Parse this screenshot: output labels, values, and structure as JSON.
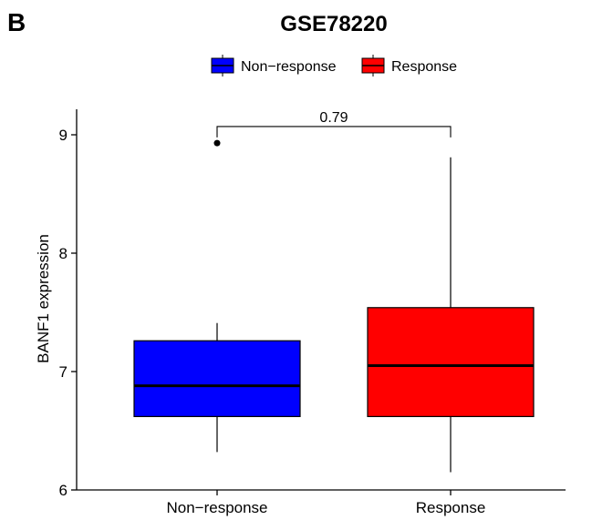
{
  "panel_label": "B",
  "chart_data": {
    "type": "boxplot",
    "title": "GSE78220",
    "xlabel": "",
    "ylabel": "BANF1 expression",
    "ylim": [
      6,
      9.25
    ],
    "yticks": [
      6,
      7,
      8,
      9
    ],
    "categories": [
      "Non−response",
      "Response"
    ],
    "legend": {
      "position": "top",
      "entries": [
        {
          "label": "Non−response",
          "color": "#0000FF"
        },
        {
          "label": "Response",
          "color": "#FF0000"
        }
      ]
    },
    "series": [
      {
        "name": "Non−response",
        "color": "#0000FF",
        "min": 6.32,
        "q1": 6.62,
        "median": 6.88,
        "q3": 7.26,
        "max": 7.41,
        "outliers": [
          8.93
        ]
      },
      {
        "name": "Response",
        "color": "#FF0000",
        "min": 6.15,
        "q1": 6.62,
        "median": 7.05,
        "q3": 7.54,
        "max": 8.81,
        "outliers": []
      }
    ],
    "annotation": {
      "text": "0.79",
      "between": [
        0,
        1
      ],
      "y": 9.07
    },
    "grid": false
  }
}
